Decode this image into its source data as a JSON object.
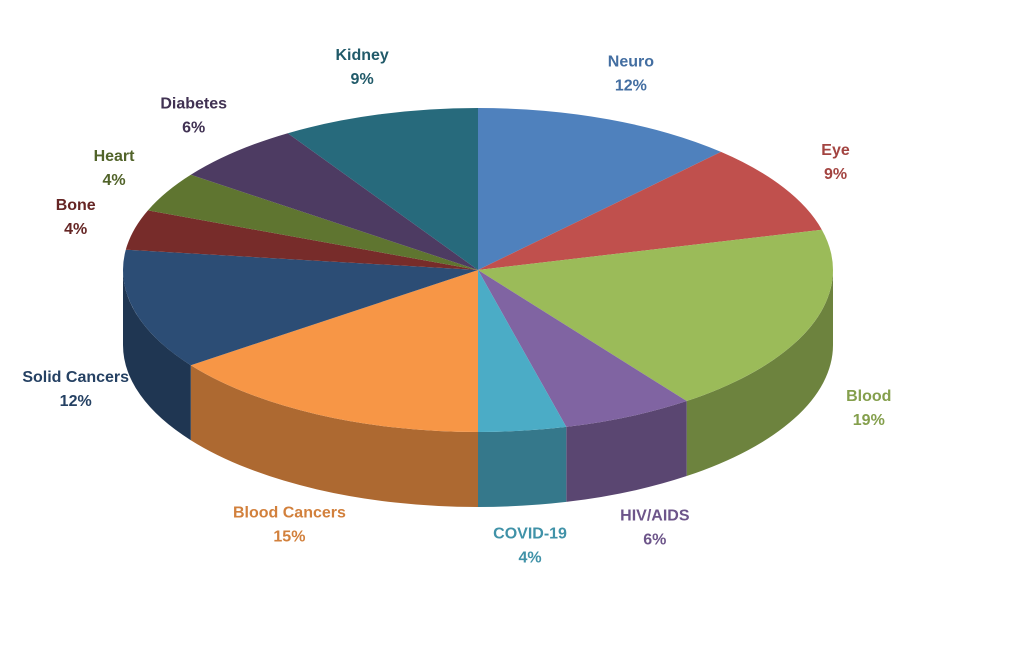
{
  "chart_data": {
    "type": "pie",
    "categories": [
      "Neuro",
      "Eye",
      "Blood",
      "HIV/AIDS",
      "COVID-19",
      "Blood Cancers",
      "Solid Cancers",
      "Bone",
      "Heart",
      "Diabetes",
      "Kidney"
    ],
    "values": [
      12,
      9,
      19,
      6,
      4,
      15,
      12,
      4,
      4,
      6,
      9
    ],
    "value_labels": [
      "12%",
      "9%",
      "19%",
      "6%",
      "4%",
      "15%",
      "12%",
      "4%",
      "4%",
      "6%",
      "9%"
    ],
    "colors": [
      "#4f81bd",
      "#c0504d",
      "#9bbb59",
      "#8064a2",
      "#4bacc6",
      "#f79646",
      "#2c4d75",
      "#772c2a",
      "#5f7530",
      "#4d3b62",
      "#276a7c"
    ]
  }
}
